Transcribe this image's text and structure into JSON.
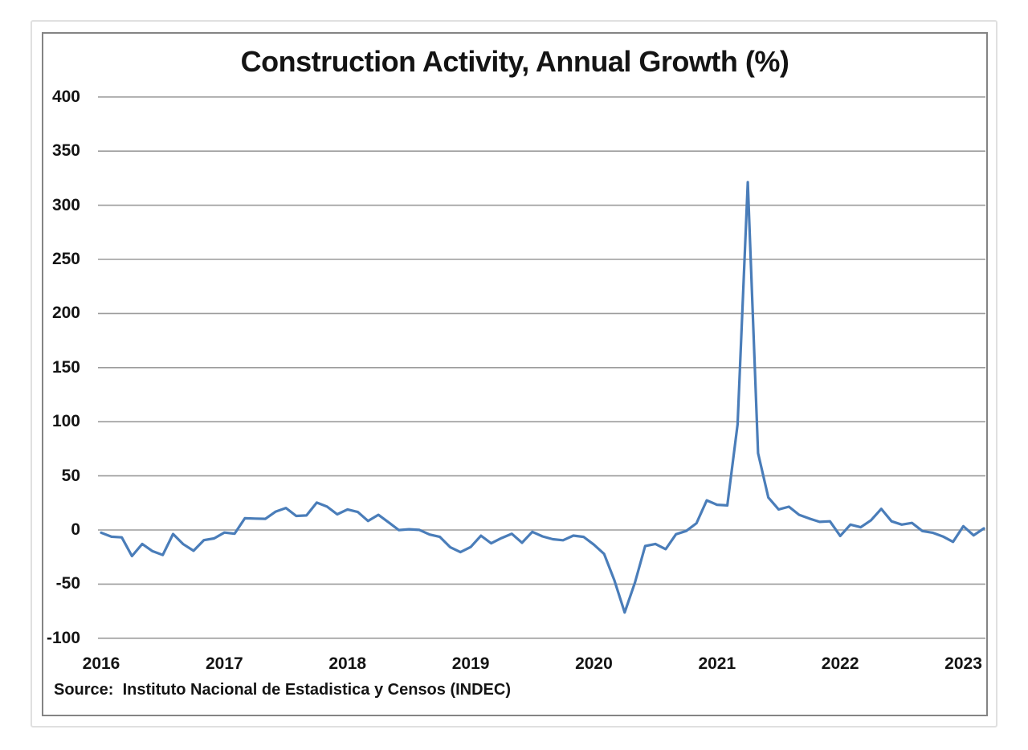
{
  "chart_data": {
    "type": "line",
    "title": "Construction Activity, Annual Growth (%)",
    "source_note": "Source:  Instituto Nacional de Estadistica y Censos (INDEC)",
    "series_name": "Construction activity, annual growth percent",
    "frequency": "monthly",
    "start": "2016-01",
    "end": "2023-03",
    "x_tick_labels": [
      "2016",
      "2017",
      "2018",
      "2019",
      "2020",
      "2021",
      "2022",
      "2023"
    ],
    "y_tick_labels": [
      "400",
      "350",
      "300",
      "250",
      "200",
      "150",
      "100",
      "50",
      "0",
      "-50",
      "-100"
    ],
    "y_ticks": [
      400,
      350,
      300,
      250,
      200,
      150,
      100,
      50,
      0,
      -50,
      -100
    ],
    "ylim": [
      -100,
      400
    ],
    "grid": "horizontal",
    "legend": "none",
    "line_color": "#4a7db9",
    "gridline_color": "#9c9c9c",
    "frame_color": "#848484",
    "text_color": "#141414",
    "values": [
      -2.5,
      -6.2,
      -6.8,
      -24.1,
      -12.9,
      -19.6,
      -23.1,
      -3.7,
      -13.1,
      -19.2,
      -9.4,
      -7.8,
      -2.4,
      -3.4,
      10.8,
      10.5,
      10.3,
      17.0,
      20.3,
      13.0,
      13.4,
      25.3,
      21.6,
      14.5,
      19.0,
      16.6,
      8.3,
      14.0,
      7.1,
      -0.1,
      0.7,
      0.1,
      -4.2,
      -6.4,
      -15.9,
      -20.5,
      -15.7,
      -5.3,
      -12.3,
      -7.5,
      -3.5,
      -11.8,
      -1.7,
      -5.9,
      -8.5,
      -9.5,
      -5.2,
      -6.4,
      -13.5,
      -22.1,
      -46.5,
      -76.2,
      -48.6,
      -14.8,
      -12.9,
      -17.7,
      -3.9,
      -0.9,
      6.2,
      27.4,
      23.3,
      22.7,
      97.6,
      321.3,
      70.9,
      30.0,
      19.0,
      21.5,
      14.0,
      10.5,
      7.5,
      8.0,
      -5.5,
      5.0,
      2.5,
      9.0,
      19.5,
      8.0,
      5.0,
      6.5,
      -1.0,
      -2.5,
      -6.0,
      -11.0,
      3.5,
      -5.0,
      1.5
    ],
    "peak_value": 321.3,
    "trough_value": -76.2
  }
}
